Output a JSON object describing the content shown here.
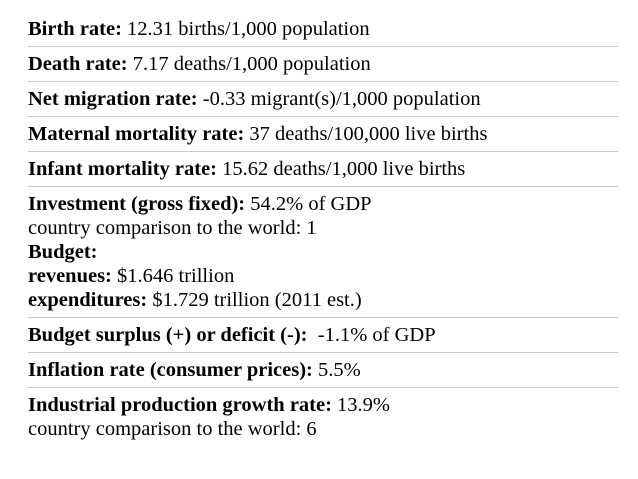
{
  "items": [
    {
      "lines": [
        {
          "label": "Birth rate:",
          "value": " 12.31 births/1,000 population"
        }
      ]
    },
    {
      "lines": [
        {
          "label": "Death rate:",
          "value": " 7.17 deaths/1,000 population"
        }
      ]
    },
    {
      "lines": [
        {
          "label": "Net migration rate:",
          "value": " -0.33 migrant(s)/1,000 population"
        }
      ]
    },
    {
      "lines": [
        {
          "label": "Maternal mortality rate:",
          "value": " 37 deaths/100,000 live births"
        }
      ]
    },
    {
      "lines": [
        {
          "label": "Infant mortality rate:",
          "value": " 15.62 deaths/1,000 live births"
        }
      ]
    },
    {
      "lines": [
        {
          "label": "Investment (gross fixed):",
          "value": " 54.2% of GDP"
        },
        {
          "label": "",
          "value": "country comparison to the world: 1"
        },
        {
          "label": "Budget:",
          "value": ""
        },
        {
          "label": "revenues:",
          "value": " $1.646 trillion"
        },
        {
          "label": "expenditures:",
          "value": " $1.729 trillion (2011 est.)"
        }
      ]
    },
    {
      "lines": [
        {
          "label": "Budget surplus (+) or deficit (-):",
          "value": "  -1.1% of GDP"
        }
      ]
    },
    {
      "lines": [
        {
          "label": "Inflation rate (consumer prices):",
          "value": " 5.5%"
        }
      ]
    },
    {
      "lines": [
        {
          "label": "Industrial production growth rate:",
          "value": " 13.9%"
        },
        {
          "label": "",
          "value": "country comparison to the world: 6"
        }
      ]
    }
  ]
}
